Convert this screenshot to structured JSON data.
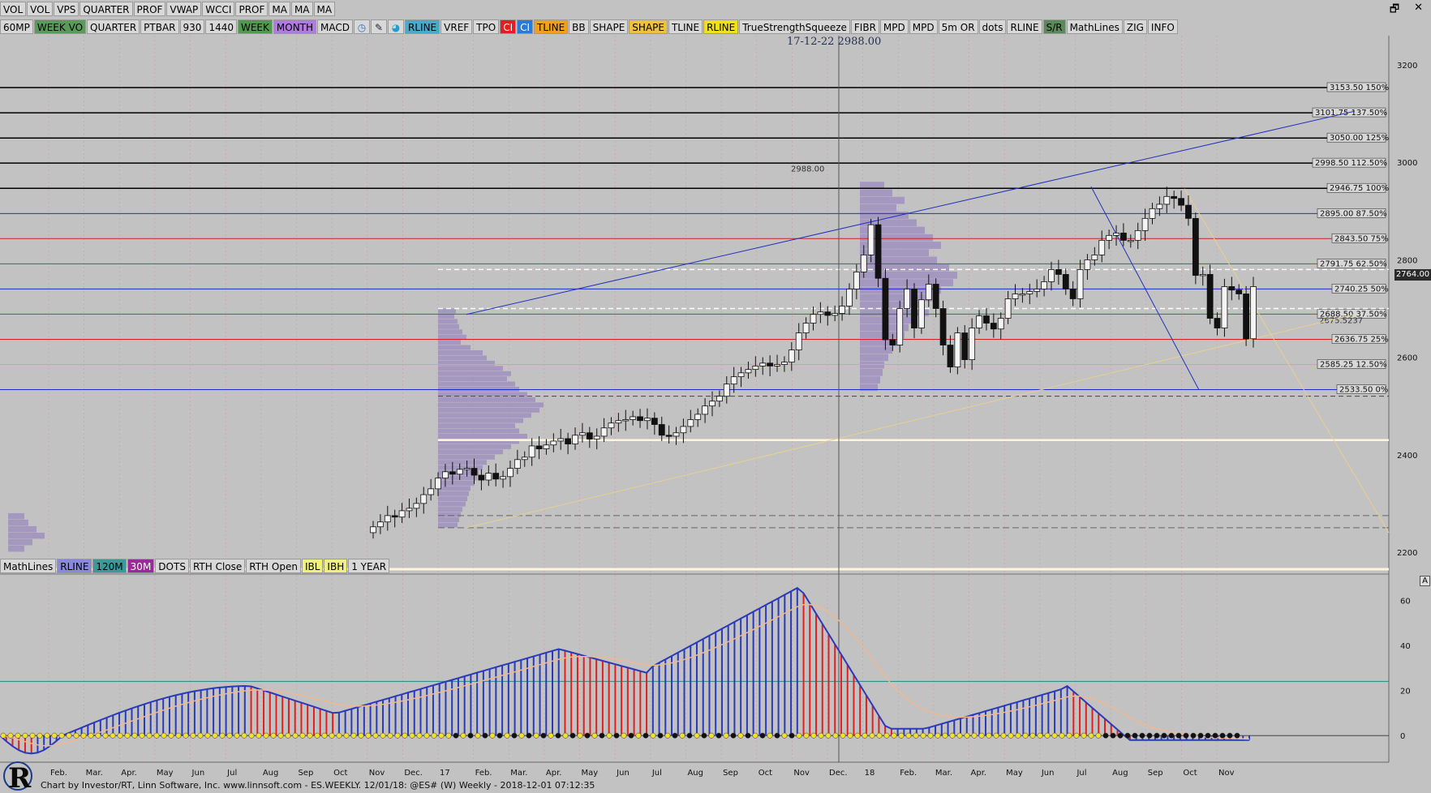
{
  "window_controls": [
    "🗗",
    "✕"
  ],
  "top_bar": [
    {
      "label": "VOL",
      "bg": "#d8d8d8"
    },
    {
      "label": "VOL",
      "bg": "#d8d8d8"
    },
    {
      "label": "VPS",
      "bg": "#d8d8d8"
    },
    {
      "label": "QUARTER",
      "bg": "#d8d8d8"
    },
    {
      "label": "PROF",
      "bg": "#d8d8d8"
    },
    {
      "label": "VWAP",
      "bg": "#d8d8d8"
    },
    {
      "label": "WCCI",
      "bg": "#d8d8d8"
    },
    {
      "label": "PROF",
      "bg": "#d8d8d8"
    },
    {
      "label": "MA",
      "bg": "#d8d8d8"
    },
    {
      "label": "MA",
      "bg": "#d8d8d8"
    },
    {
      "label": "MA",
      "bg": "#d8d8d8"
    }
  ],
  "tool_bar": [
    {
      "label": "60MP",
      "bg": "#d8d8d8"
    },
    {
      "label": "WEEK VO",
      "bg": "#5a9a5a"
    },
    {
      "label": "QUARTER",
      "bg": "#d8d8d8"
    },
    {
      "label": "PTBAR",
      "bg": "#d8d8d8"
    },
    {
      "label": "930",
      "bg": "#d8d8d8"
    },
    {
      "label": "1440",
      "bg": "#d8d8d8"
    },
    {
      "label": "WEEK",
      "bg": "#4f9a4f"
    },
    {
      "label": "MONTH",
      "bg": "#b07ae0"
    },
    {
      "label": "MACD",
      "bg": "#d8d8d8"
    },
    {
      "label": "",
      "bg": "#d8d8d8",
      "icon": "clock-icon",
      "glyph": "◷",
      "color": "#1f6fd0"
    },
    {
      "label": "",
      "bg": "#d8d8d8",
      "icon": "pencil-icon",
      "glyph": "✎",
      "color": "#223"
    },
    {
      "label": "",
      "bg": "#d8d8d8",
      "icon": "palette-icon",
      "glyph": "◕",
      "color": "#1f9fd0"
    },
    {
      "label": "RLINE",
      "bg": "#4aa8c8"
    },
    {
      "label": "VREF",
      "bg": "#d8d8d8"
    },
    {
      "label": "TPO",
      "bg": "#d8d8d8"
    },
    {
      "label": "CI",
      "bg": "#e02020",
      "color": "#fff"
    },
    {
      "label": "CI",
      "bg": "#2a7ad8",
      "color": "#fff"
    },
    {
      "label": "TLINE",
      "bg": "#f0a020"
    },
    {
      "label": "BB",
      "bg": "#d8d8d8"
    },
    {
      "label": "SHAPE",
      "bg": "#d8d8d8"
    },
    {
      "label": "SHAPE",
      "bg": "#f0c040"
    },
    {
      "label": "TLINE",
      "bg": "#d8d8d8"
    },
    {
      "label": "RLINE",
      "bg": "#f0e020"
    },
    {
      "label": "TrueStrengthSqueeze",
      "bg": "#d8d8d8"
    },
    {
      "label": "FIBR",
      "bg": "#d8d8d8"
    },
    {
      "label": "MPD",
      "bg": "#d8d8d8"
    },
    {
      "label": "MPD",
      "bg": "#d8d8d8"
    },
    {
      "label": "5m OR",
      "bg": "#d8d8d8"
    },
    {
      "label": "dots",
      "bg": "#d8d8d8"
    },
    {
      "label": "RLINE",
      "bg": "#d8d8d8"
    },
    {
      "label": "S/R",
      "bg": "#5a8a5a"
    },
    {
      "label": "MathLines",
      "bg": "#d8d8d8"
    },
    {
      "label": "ZIG",
      "bg": "#d8d8d8"
    },
    {
      "label": "INFO",
      "bg": "#d8d8d8"
    }
  ],
  "bottom_bar": [
    {
      "label": "MathLines",
      "bg": "#d8d8d8"
    },
    {
      "label": "RLINE",
      "bg": "#8888e0"
    },
    {
      "label": "120M",
      "bg": "#3a9a9a"
    },
    {
      "label": "30M",
      "bg": "#9a2a9a",
      "color": "#fff"
    },
    {
      "label": "DOTS",
      "bg": "#d8d8d8"
    },
    {
      "label": "RTH Close",
      "bg": "#d8d8d8"
    },
    {
      "label": "RTH Open",
      "bg": "#d8d8d8"
    },
    {
      "label": "IBL",
      "bg": "#f0f080"
    },
    {
      "label": "IBH",
      "bg": "#f0f080"
    },
    {
      "label": "1 YEAR",
      "bg": "#d8d8d8"
    }
  ],
  "crosshair_readout": "17-12-22  2988.00",
  "current_price": "2764.00",
  "footer": "Chart by Investor/RT, Linn Software, Inc. www.linnsoft.com - ES.WEEKLY. 12/01/18: @ES# (W) Weekly - 2018-12-01 07:12:35",
  "logo_letter": "R",
  "indicator_marker": "A",
  "chart_data": {
    "type": "candlestick",
    "price_axis": {
      "range": [
        2160,
        3260
      ],
      "ticks": [
        2200,
        2400,
        2600,
        2800,
        3000,
        3200
      ]
    },
    "indicator_axis": {
      "range": [
        -10,
        68
      ],
      "ticks": [
        0,
        20,
        40,
        60
      ],
      "reference_line": 24
    },
    "x_axis": {
      "month_labels": [
        "Feb.",
        "Mar.",
        "Apr.",
        "May",
        "Jun",
        "Jul",
        "Aug",
        "Sep",
        "Oct",
        "Nov",
        "Dec.",
        "17",
        "Feb.",
        "Mar.",
        "Apr.",
        "May",
        "Jun",
        "Jul",
        "Aug",
        "Sep",
        "Oct",
        "Nov",
        "Dec.",
        "18",
        "Feb.",
        "Mar.",
        "Apr.",
        "May",
        "Jun",
        "Jul",
        "Aug",
        "Sep",
        "Oct",
        "Nov"
      ]
    },
    "closes": [
      2252,
      2262,
      2275,
      2272,
      2285,
      2290,
      2300,
      2318,
      2330,
      2352,
      2365,
      2360,
      2370,
      2372,
      2358,
      2348,
      2362,
      2350,
      2355,
      2372,
      2390,
      2395,
      2418,
      2412,
      2420,
      2428,
      2433,
      2422,
      2440,
      2445,
      2432,
      2438,
      2455,
      2465,
      2470,
      2472,
      2478,
      2470,
      2475,
      2462,
      2440,
      2438,
      2445,
      2458,
      2472,
      2483,
      2500,
      2510,
      2520,
      2545,
      2560,
      2568,
      2575,
      2582,
      2588,
      2582,
      2585,
      2590,
      2615,
      2650,
      2670,
      2688,
      2693,
      2686,
      2690,
      2705,
      2740,
      2775,
      2810,
      2872,
      2762,
      2636,
      2625,
      2700,
      2740,
      2660,
      2718,
      2750,
      2700,
      2625,
      2580,
      2650,
      2595,
      2660,
      2685,
      2670,
      2658,
      2680,
      2720,
      2730,
      2730,
      2735,
      2740,
      2755,
      2780,
      2770,
      2740,
      2720,
      2780,
      2800,
      2810,
      2840,
      2850,
      2855,
      2840,
      2840,
      2860,
      2885,
      2905,
      2914,
      2930,
      2926,
      2912,
      2885,
      2768,
      2770,
      2680,
      2660,
      2745,
      2738,
      2730,
      2638,
      2745
    ],
    "fib_levels": [
      {
        "label": "3153.50 150%",
        "price": 3153.5,
        "color": "#000000"
      },
      {
        "label": "3101.75 137.50%",
        "price": 3101.75,
        "color": "#000000"
      },
      {
        "label": "3050.00 125%",
        "price": 3050,
        "color": "#000000"
      },
      {
        "label": "2998.50 112.50%",
        "price": 2998.5,
        "color": "#000000"
      },
      {
        "label": "2946.75 100%",
        "price": 2946.75,
        "color": "#000000"
      },
      {
        "label": "2895.00 87.50%",
        "price": 2895,
        "color": "#2233bb"
      },
      {
        "label": "2843.50 75%",
        "price": 2843.5,
        "color": "#d02020"
      },
      {
        "label": "2791.75 62.50%",
        "price": 2791.75,
        "color": "#1a8a2a"
      },
      {
        "label": "2740.25 50%",
        "price": 2740.25,
        "color": "#1a2bd0"
      },
      {
        "label": "2688.50 37.50%",
        "price": 2688.5,
        "color": "#1a8a2a"
      },
      {
        "label": "2636.75 25%",
        "price": 2636.75,
        "color": "#d02020"
      },
      {
        "label": "2585.25 12.50%",
        "price": 2585.25,
        "color": "#d0b060"
      },
      {
        "label": "2533.50 0%",
        "price": 2533.5,
        "color": "#1a2bd0"
      }
    ],
    "minor_level_label": "2675.5237",
    "crosshair_label": "2988.00"
  }
}
